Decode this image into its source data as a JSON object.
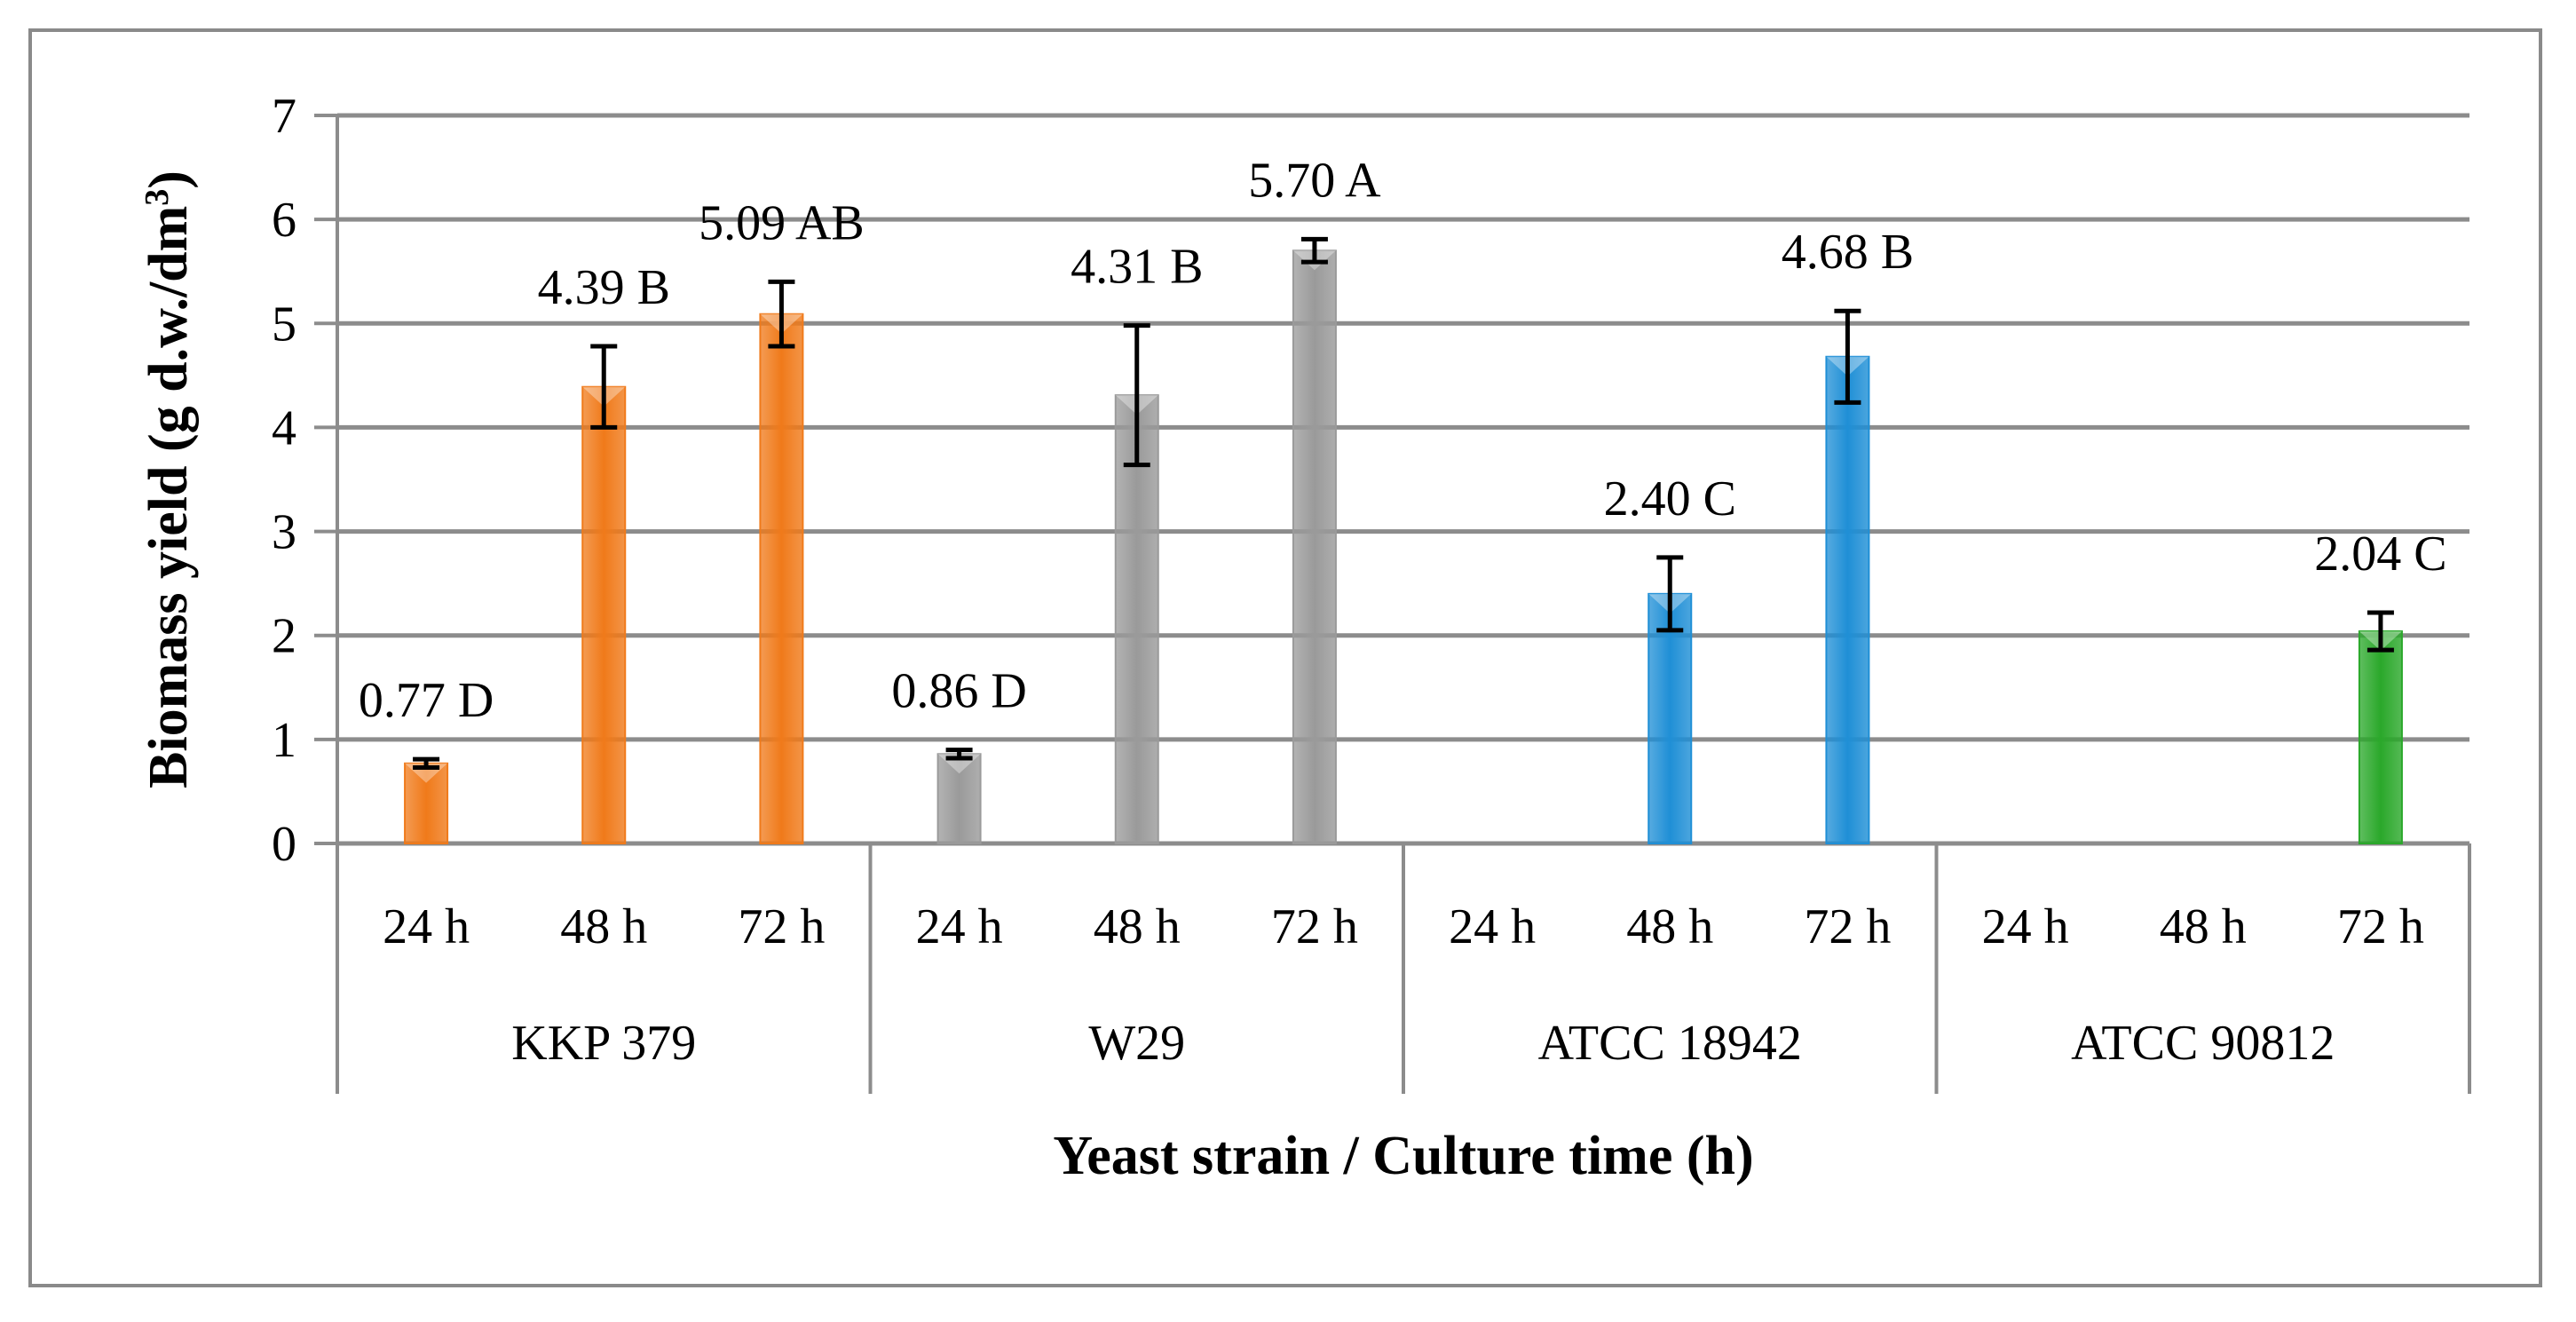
{
  "chart_data": {
    "type": "bar",
    "xlabel": "Yeast strain / Culture time (h)",
    "ylabel_main": "Biomass yield (g d.w./dm",
    "ylabel_sup": "3",
    "ylabel_end": ")",
    "ylim": [
      0,
      7
    ],
    "yticks": [
      "0",
      "1",
      "2",
      "3",
      "4",
      "5",
      "6",
      "7"
    ],
    "grid": true,
    "groups": [
      {
        "name": "KKP 379",
        "color": "#f07a1a",
        "bars": [
          {
            "time": "24 h",
            "value": 0.77,
            "error": 0.04,
            "label": "0.77 D"
          },
          {
            "time": "48 h",
            "value": 4.39,
            "error": 0.39,
            "label": "4.39 B"
          },
          {
            "time": "72 h",
            "value": 5.09,
            "error": 0.31,
            "label": "5.09 AB"
          }
        ]
      },
      {
        "name": "W29",
        "color": "#9a9a9a",
        "bars": [
          {
            "time": "24 h",
            "value": 0.86,
            "error": 0.04,
            "label": "0.86 D"
          },
          {
            "time": "48 h",
            "value": 4.31,
            "error": 0.67,
            "label": "4.31 B"
          },
          {
            "time": "72 h",
            "value": 5.7,
            "error": 0.11,
            "label": "5.70 A"
          }
        ]
      },
      {
        "name": "ATCC 18942",
        "color": "#1f8fd6",
        "bars": [
          {
            "time": "24 h",
            "value": null,
            "error": null,
            "label": ""
          },
          {
            "time": "48 h",
            "value": 2.4,
            "error": 0.35,
            "label": "2.40 C"
          },
          {
            "time": "72 h",
            "value": 4.68,
            "error": 0.44,
            "label": "4.68 B"
          }
        ]
      },
      {
        "name": "ATCC 90812",
        "color": "#2aa82a",
        "bars": [
          {
            "time": "24 h",
            "value": null,
            "error": null,
            "label": ""
          },
          {
            "time": "48 h",
            "value": null,
            "error": null,
            "label": ""
          },
          {
            "time": "72 h",
            "value": 2.04,
            "error": 0.18,
            "label": "2.04 C"
          }
        ]
      }
    ]
  }
}
